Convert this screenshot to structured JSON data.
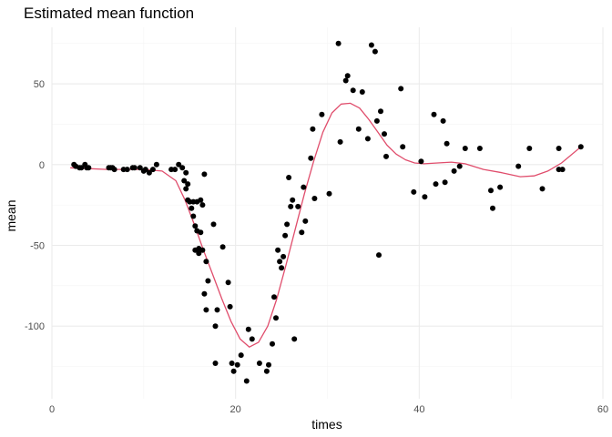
{
  "chart_data": {
    "type": "scatter",
    "title": "Estimated mean function",
    "xlabel": "times",
    "ylabel": "mean",
    "xlim": [
      0,
      60
    ],
    "ylim": [
      -145,
      85
    ],
    "x_ticks": [
      0,
      20,
      40,
      60
    ],
    "x_tick_labels": [
      "0",
      "20",
      "40",
      "60"
    ],
    "y_ticks": [
      -100,
      -50,
      0,
      50
    ],
    "y_tick_labels": [
      "-100",
      "-50",
      "0",
      "50"
    ],
    "grid": true,
    "colors": {
      "points": "#000000",
      "line": "#e04d6c",
      "grid": "#ebebeb"
    },
    "series": [
      {
        "kind": "points",
        "x": [
          2.4,
          2.6,
          3.0,
          3.2,
          3.6,
          3.8,
          4.0,
          6.2,
          6.4,
          6.6,
          6.8,
          7.8,
          8.2,
          8.8,
          9.0,
          9.6,
          10.0,
          10.2,
          10.6,
          11.0,
          11.4,
          13.0,
          13.4,
          13.8,
          14.2,
          14.4,
          14.6,
          14.6,
          14.8,
          14.8,
          15.0,
          15.2,
          15.4,
          15.4,
          15.6,
          15.6,
          15.8,
          15.8,
          16.0,
          16.0,
          16.2,
          16.2,
          16.4,
          16.4,
          16.6,
          16.6,
          16.8,
          16.8,
          17.0,
          17.6,
          17.8,
          17.8,
          18.0,
          18.6,
          19.2,
          19.4,
          19.6,
          19.8,
          20.2,
          20.6,
          21.2,
          21.4,
          21.8,
          22.6,
          23.4,
          23.6,
          24.0,
          24.2,
          24.4,
          24.6,
          24.8,
          25.0,
          25.2,
          25.4,
          25.6,
          25.8,
          26.0,
          26.2,
          26.4,
          26.8,
          27.2,
          27.4,
          27.6,
          28.2,
          28.4,
          28.6,
          29.4,
          30.2,
          31.2,
          31.4,
          32.0,
          32.2,
          32.8,
          33.4,
          33.8,
          34.4,
          34.8,
          35.2,
          35.4,
          35.6,
          35.8,
          36.2,
          36.4,
          38.0,
          38.2,
          39.4,
          40.2,
          40.6,
          41.6,
          41.8,
          42.6,
          42.8,
          43.0,
          43.8,
          44.4,
          45.0,
          46.6,
          47.8,
          48.0,
          48.8,
          50.8,
          52.0,
          53.4,
          55.2,
          55.2,
          55.6,
          57.6
        ],
        "y": [
          0,
          -1,
          -2,
          -2,
          0,
          -2,
          -2,
          -2,
          -2,
          -2,
          -3,
          -3,
          -3,
          -2,
          -2,
          -2,
          -4,
          -3,
          -5,
          -3,
          0,
          -3,
          -3,
          0,
          -2,
          -10,
          -5,
          -15,
          -12,
          -22,
          -23,
          -27,
          -32,
          -23,
          -38,
          -53,
          -41,
          -23,
          -52,
          -55,
          -42,
          -22,
          -53,
          -25,
          -80,
          -6,
          -90,
          -60,
          -72,
          -37,
          -100,
          -123,
          -90,
          -51,
          -73,
          -88,
          -123,
          -128,
          -124,
          -118,
          -134,
          -102,
          -108,
          -123,
          -128,
          -124,
          -111,
          -82,
          -95,
          -53,
          -60,
          -64,
          -57,
          -44,
          -37,
          -8,
          -26,
          -22,
          -108,
          -26,
          -42,
          -14,
          -35,
          4,
          22,
          -21,
          31,
          -18,
          75,
          14,
          52,
          55,
          46,
          22,
          45,
          16,
          74,
          70,
          27,
          -56,
          33,
          19,
          5,
          47,
          11,
          -17,
          2,
          -20,
          31,
          -12,
          27,
          -11,
          13,
          -4,
          -1,
          10,
          10,
          -16,
          -27,
          -14,
          -1,
          10,
          -15,
          -3,
          10,
          -3,
          11
        ]
      },
      {
        "kind": "line",
        "x": [
          2,
          4,
          6,
          8,
          10,
          12,
          13.5,
          14.5,
          15.5,
          16.5,
          17.5,
          18.5,
          19.5,
          20.5,
          21.5,
          22.5,
          23.5,
          24.5,
          25.5,
          26.5,
          27.5,
          28.5,
          29.5,
          30.5,
          31.5,
          32.5,
          33.5,
          34.5,
          35.5,
          36.5,
          37.5,
          38.5,
          39.5,
          40.5,
          42,
          43.5,
          45,
          47,
          49,
          51,
          52.5,
          54,
          55.5,
          57.6
        ],
        "y": [
          -2,
          -2.5,
          -3,
          -3,
          -3,
          -4,
          -10,
          -22,
          -37,
          -53,
          -68,
          -83,
          -97,
          -108,
          -113,
          -110,
          -100,
          -83,
          -62,
          -40,
          -18,
          2,
          20,
          32,
          37.5,
          38,
          35,
          28,
          20,
          12,
          6.5,
          3,
          1,
          0.5,
          1,
          1.5,
          0.5,
          -3,
          -5,
          -7.5,
          -7,
          -4,
          1,
          11
        ]
      }
    ]
  }
}
